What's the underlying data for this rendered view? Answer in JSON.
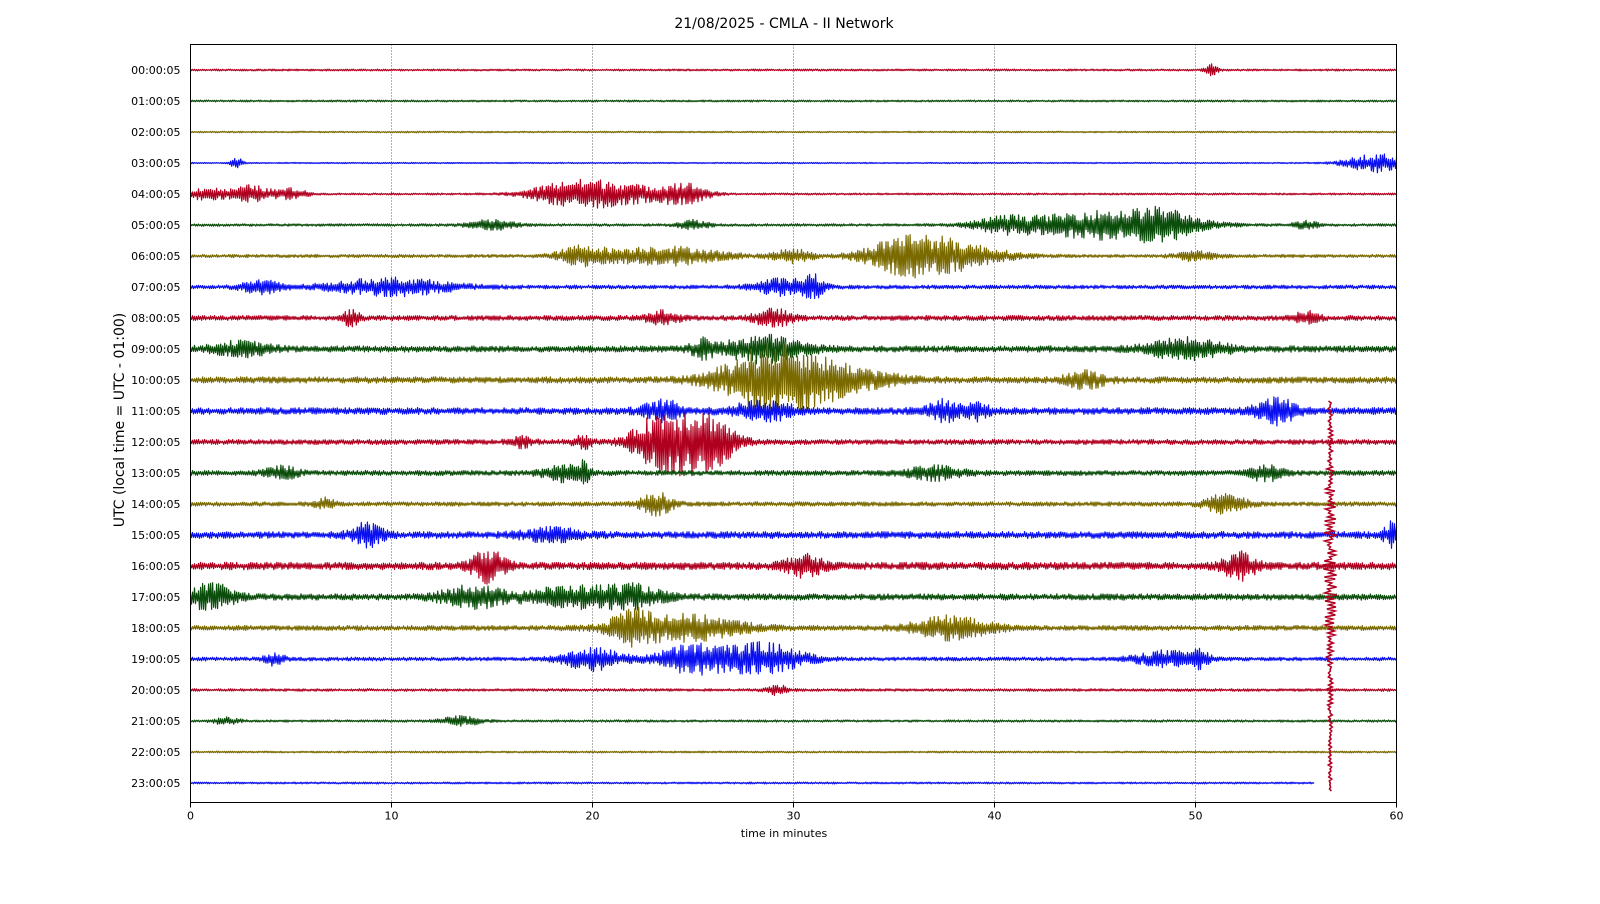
{
  "chart_data": {
    "type": "line",
    "title": "21/08/2025 - CMLA - II Network",
    "xlabel": "time in minutes",
    "ylabel": "UTC (local time = UTC - 01:00)",
    "xlim": [
      0,
      60
    ],
    "x_ticks": [
      "0",
      "10",
      "20",
      "30",
      "40",
      "50",
      "60"
    ],
    "grid": "vertical dotted lines at 10-minute intervals",
    "legend": "none",
    "trace_colors": [
      "#b00020",
      "#0b4d0b",
      "#7a6a00",
      "#0a10f0"
    ],
    "series": [
      {
        "label": "00:00:05",
        "color": "#b00020",
        "noise_level": 0.06,
        "events": [
          {
            "t": 50.8,
            "amp": 0.35,
            "dur": 0.3
          }
        ]
      },
      {
        "label": "01:00:05",
        "color": "#0b4d0b",
        "noise_level": 0.06,
        "events": []
      },
      {
        "label": "02:00:05",
        "color": "#7a6a00",
        "noise_level": 0.05,
        "events": []
      },
      {
        "label": "03:00:05",
        "color": "#0a10f0",
        "noise_level": 0.04,
        "events": [
          {
            "t": 2.3,
            "amp": 0.35,
            "dur": 0.3
          },
          {
            "t": 59.0,
            "amp": 0.6,
            "dur": 1.5
          }
        ]
      },
      {
        "label": "04:00:05",
        "color": "#b00020",
        "noise_level": 0.06,
        "events": [
          {
            "t": 0.8,
            "amp": 0.4,
            "dur": 1.0
          },
          {
            "t": 3.0,
            "amp": 0.55,
            "dur": 1.0
          },
          {
            "t": 5.0,
            "amp": 0.35,
            "dur": 0.8
          },
          {
            "t": 18.5,
            "amp": 0.6,
            "dur": 1.8
          },
          {
            "t": 21.0,
            "amp": 0.75,
            "dur": 2.2
          },
          {
            "t": 24.5,
            "amp": 0.7,
            "dur": 1.2
          }
        ]
      },
      {
        "label": "05:00:05",
        "color": "#0b4d0b",
        "noise_level": 0.08,
        "events": [
          {
            "t": 15.0,
            "amp": 0.3,
            "dur": 1.2
          },
          {
            "t": 25.0,
            "amp": 0.3,
            "dur": 0.8
          },
          {
            "t": 40.5,
            "amp": 0.4,
            "dur": 1.5
          },
          {
            "t": 45.5,
            "amp": 0.9,
            "dur": 4.0
          },
          {
            "t": 48.5,
            "amp": 0.6,
            "dur": 1.5
          },
          {
            "t": 55.5,
            "amp": 0.3,
            "dur": 0.6
          }
        ]
      },
      {
        "label": "06:00:05",
        "color": "#7a6a00",
        "noise_level": 0.1,
        "events": [
          {
            "t": 19.5,
            "amp": 0.6,
            "dur": 1.2
          },
          {
            "t": 23.5,
            "amp": 0.6,
            "dur": 3.0
          },
          {
            "t": 30.0,
            "amp": 0.4,
            "dur": 1.0
          },
          {
            "t": 35.5,
            "amp": 1.1,
            "dur": 2.0
          },
          {
            "t": 38.0,
            "amp": 0.8,
            "dur": 2.5
          },
          {
            "t": 50.0,
            "amp": 0.3,
            "dur": 1.0
          }
        ]
      },
      {
        "label": "07:00:05",
        "color": "#0a10f0",
        "noise_level": 0.12,
        "events": [
          {
            "t": 3.5,
            "amp": 0.4,
            "dur": 1.0
          },
          {
            "t": 10.0,
            "amp": 0.55,
            "dur": 3.0
          },
          {
            "t": 29.5,
            "amp": 0.5,
            "dur": 1.5
          },
          {
            "t": 31.0,
            "amp": 0.6,
            "dur": 0.5
          }
        ]
      },
      {
        "label": "08:00:05",
        "color": "#b00020",
        "noise_level": 0.16,
        "events": [
          {
            "t": 8.0,
            "amp": 0.5,
            "dur": 0.4
          },
          {
            "t": 23.5,
            "amp": 0.4,
            "dur": 0.8
          },
          {
            "t": 29.0,
            "amp": 0.5,
            "dur": 1.0
          },
          {
            "t": 55.5,
            "amp": 0.4,
            "dur": 0.6
          }
        ]
      },
      {
        "label": "09:00:05",
        "color": "#0b4d0b",
        "noise_level": 0.2,
        "events": [
          {
            "t": 2.5,
            "amp": 0.4,
            "dur": 1.5
          },
          {
            "t": 25.5,
            "amp": 0.5,
            "dur": 0.6
          },
          {
            "t": 28.5,
            "amp": 0.8,
            "dur": 2.0
          },
          {
            "t": 49.5,
            "amp": 0.6,
            "dur": 2.0
          }
        ]
      },
      {
        "label": "10:00:05",
        "color": "#7a6a00",
        "noise_level": 0.2,
        "events": [
          {
            "t": 29.0,
            "amp": 2.2,
            "dur": 2.5
          },
          {
            "t": 32.5,
            "amp": 0.7,
            "dur": 2.5
          },
          {
            "t": 44.5,
            "amp": 0.5,
            "dur": 1.0
          }
        ]
      },
      {
        "label": "11:00:05",
        "color": "#0a10f0",
        "noise_level": 0.22,
        "events": [
          {
            "t": 23.5,
            "amp": 0.6,
            "dur": 1.0
          },
          {
            "t": 28.5,
            "amp": 0.6,
            "dur": 1.5
          },
          {
            "t": 37.5,
            "amp": 0.6,
            "dur": 1.0
          },
          {
            "t": 39.2,
            "amp": 0.5,
            "dur": 0.5
          },
          {
            "t": 54.0,
            "amp": 0.8,
            "dur": 1.0
          }
        ]
      },
      {
        "label": "12:00:05",
        "color": "#b00020",
        "noise_level": 0.16,
        "events": [
          {
            "t": 23.0,
            "amp": 1.2,
            "dur": 1.2
          },
          {
            "t": 24.5,
            "amp": 1.5,
            "dur": 1.4
          },
          {
            "t": 26.0,
            "amp": 1.3,
            "dur": 1.2
          },
          {
            "t": 16.5,
            "amp": 0.3,
            "dur": 0.6
          },
          {
            "t": 19.5,
            "amp": 0.4,
            "dur": 0.5
          }
        ]
      },
      {
        "label": "13:00:05",
        "color": "#0b4d0b",
        "noise_level": 0.16,
        "events": [
          {
            "t": 4.5,
            "amp": 0.4,
            "dur": 0.8
          },
          {
            "t": 18.5,
            "amp": 0.5,
            "dur": 1.0
          },
          {
            "t": 19.6,
            "amp": 0.6,
            "dur": 0.3
          },
          {
            "t": 37.0,
            "amp": 0.4,
            "dur": 1.5
          },
          {
            "t": 53.5,
            "amp": 0.5,
            "dur": 0.8
          }
        ]
      },
      {
        "label": "14:00:05",
        "color": "#7a6a00",
        "noise_level": 0.14,
        "events": [
          {
            "t": 6.7,
            "amp": 0.35,
            "dur": 0.5
          },
          {
            "t": 23.2,
            "amp": 0.7,
            "dur": 0.8
          },
          {
            "t": 51.5,
            "amp": 0.6,
            "dur": 1.0
          }
        ]
      },
      {
        "label": "15:00:05",
        "color": "#0a10f0",
        "noise_level": 0.22,
        "events": [
          {
            "t": 8.8,
            "amp": 0.7,
            "dur": 0.8
          },
          {
            "t": 18.0,
            "amp": 0.4,
            "dur": 1.5
          },
          {
            "t": 59.8,
            "amp": 0.8,
            "dur": 0.4
          }
        ]
      },
      {
        "label": "16:00:05",
        "color": "#b00020",
        "noise_level": 0.24,
        "events": [
          {
            "t": 14.8,
            "amp": 1.0,
            "dur": 0.8
          },
          {
            "t": 30.5,
            "amp": 0.6,
            "dur": 1.0
          },
          {
            "t": 52.2,
            "amp": 0.8,
            "dur": 0.8
          }
        ]
      },
      {
        "label": "17:00:05",
        "color": "#0b4d0b",
        "noise_level": 0.2,
        "events": [
          {
            "t": 1.0,
            "amp": 0.8,
            "dur": 1.2
          },
          {
            "t": 14.0,
            "amp": 0.7,
            "dur": 1.5
          },
          {
            "t": 19.0,
            "amp": 0.6,
            "dur": 2.5
          },
          {
            "t": 22.0,
            "amp": 0.6,
            "dur": 1.5
          }
        ]
      },
      {
        "label": "18:00:05",
        "color": "#7a6a00",
        "noise_level": 0.16,
        "events": [
          {
            "t": 22.0,
            "amp": 1.0,
            "dur": 1.0
          },
          {
            "t": 24.5,
            "amp": 0.8,
            "dur": 3.0
          },
          {
            "t": 37.8,
            "amp": 0.7,
            "dur": 2.0
          }
        ]
      },
      {
        "label": "19:00:05",
        "color": "#0a10f0",
        "noise_level": 0.12,
        "events": [
          {
            "t": 4.2,
            "amp": 0.4,
            "dur": 0.5
          },
          {
            "t": 20.0,
            "amp": 0.7,
            "dur": 1.5
          },
          {
            "t": 25.0,
            "amp": 0.9,
            "dur": 1.8
          },
          {
            "t": 28.5,
            "amp": 1.0,
            "dur": 2.0
          },
          {
            "t": 48.5,
            "amp": 0.5,
            "dur": 1.5
          },
          {
            "t": 50.2,
            "amp": 0.5,
            "dur": 0.5
          }
        ]
      },
      {
        "label": "20:00:05",
        "color": "#b00020",
        "noise_level": 0.08,
        "events": [
          {
            "t": 29.2,
            "amp": 0.3,
            "dur": 0.6
          }
        ]
      },
      {
        "label": "21:00:05",
        "color": "#0b4d0b",
        "noise_level": 0.07,
        "events": [
          {
            "t": 1.8,
            "amp": 0.25,
            "dur": 0.6
          },
          {
            "t": 13.5,
            "amp": 0.3,
            "dur": 1.0
          }
        ]
      },
      {
        "label": "22:00:05",
        "color": "#7a6a00",
        "noise_level": 0.06,
        "events": []
      },
      {
        "label": "23:00:05",
        "color": "#0a10f0",
        "noise_level": 0.06,
        "x_end": 55.9,
        "events": []
      }
    ],
    "spike": {
      "t": 56.7,
      "color": "#b00020",
      "from_row": 11.0,
      "to_row": 23.3
    }
  }
}
